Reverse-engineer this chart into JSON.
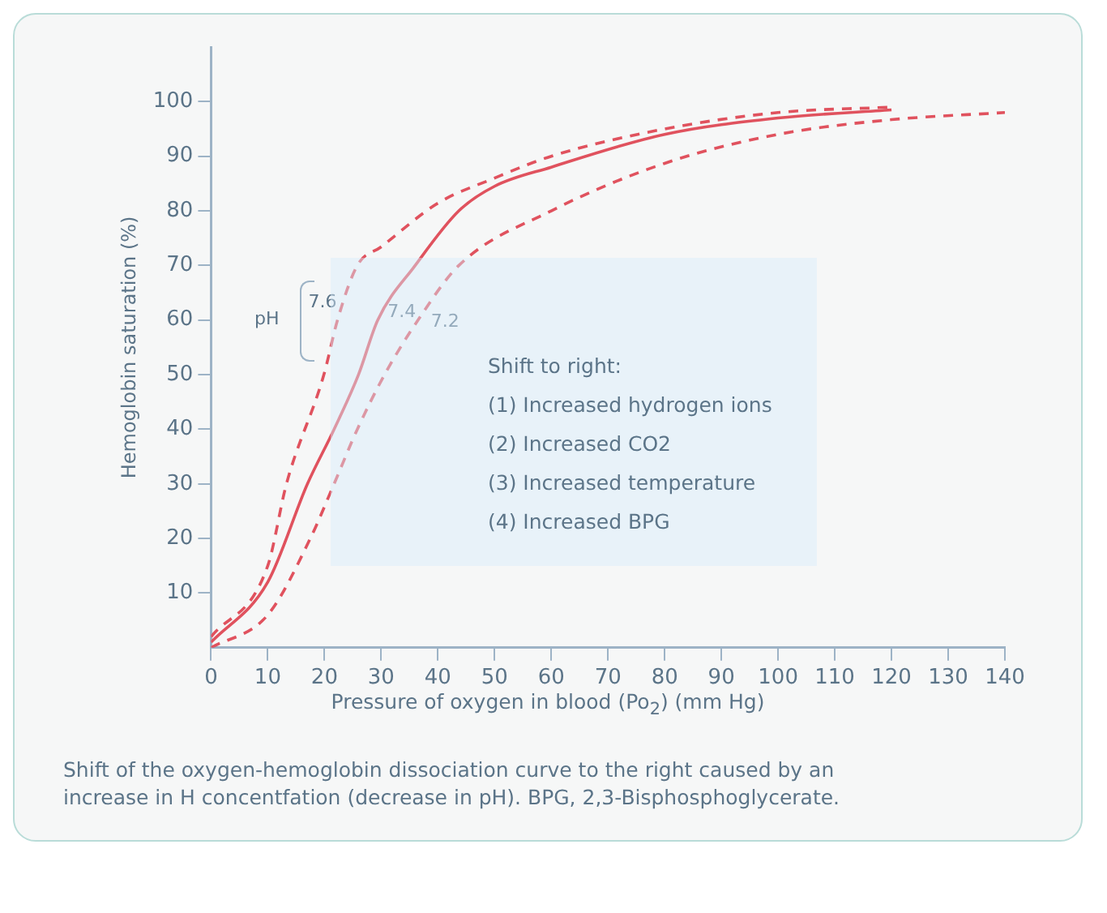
{
  "chart_data": {
    "type": "line",
    "ylabel": "Hemoglobin saturation (%)",
    "xlabel": "Pressure of oxygen in blood (Po$_{2}$) (mm Hg)",
    "xlim": [
      0,
      140
    ],
    "xticks": [
      0,
      10,
      20,
      30,
      40,
      50,
      60,
      70,
      80,
      90,
      100,
      110,
      120,
      130,
      140
    ],
    "ylim": [
      0,
      110
    ],
    "yticks": [
      10,
      20,
      30,
      40,
      50,
      60,
      70,
      80,
      90,
      100
    ],
    "grid": false,
    "legend": false,
    "marker": "none",
    "series": [
      {
        "name": "7.6",
        "color": "#e0525e",
        "line_style": "dashed",
        "x": [
          0,
          10,
          13.3,
          19.9,
          22.3,
          25.8,
          30,
          40,
          50,
          60,
          80,
          100,
          120
        ],
        "values": [
          2,
          15,
          30,
          50,
          60,
          70,
          73.4,
          81.4,
          86,
          90,
          95,
          98,
          99
        ]
      },
      {
        "name": "7.4",
        "color": "#e0525e",
        "line_style": "solid",
        "x": [
          0,
          10,
          17,
          21.7,
          26,
          29.4,
          36,
          43.7,
          50,
          60,
          80,
          100,
          120
        ],
        "values": [
          1,
          12,
          30,
          40,
          50,
          60,
          70,
          80,
          84.5,
          88,
          94,
          97,
          98.5
        ]
      },
      {
        "name": "7.2",
        "color": "#e0525e",
        "line_style": "dashed",
        "x": [
          0,
          10,
          17.5,
          21.7,
          25.8,
          30.6,
          36.5,
          43.7,
          60,
          80,
          100,
          120,
          140
        ],
        "values": [
          0,
          6,
          20,
          30,
          40,
          50,
          60,
          70,
          80,
          88.7,
          94,
          96.7,
          98
        ]
      }
    ],
    "annotations": [
      "pH",
      "Shift to right:",
      "(1) Increased hydrogen ions",
      "(2) Increased CO2",
      "(3) Increased temperature",
      "(4) Increased BPG",
      "Shift of the oxygen-hemoglobin dissociation curve to the right caused by an increase in H  concentfation (decrease in pH). BPG, 2,3-Bisphosphoglycerate."
    ]
  }
}
